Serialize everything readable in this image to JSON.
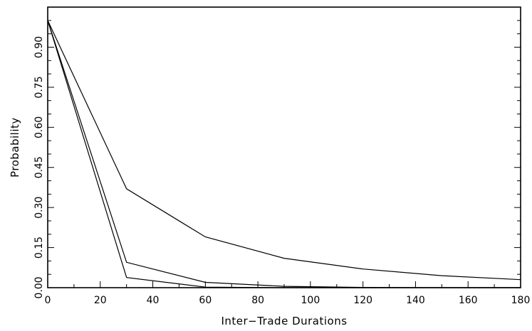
{
  "chart_data": {
    "type": "line",
    "title": "",
    "xlabel": "Inter−Trade Durations",
    "ylabel": "Probability",
    "xlim": [
      0,
      180
    ],
    "ylim": [
      0,
      1.05
    ],
    "x_ticks": [
      0,
      20,
      40,
      60,
      80,
      100,
      120,
      140,
      160,
      180
    ],
    "y_ticks": [
      0.0,
      0.15,
      0.3,
      0.45,
      0.6,
      0.75,
      0.9
    ],
    "y_tick_labels": [
      "0.00",
      "0.15",
      "0.30",
      "0.45",
      "0.60",
      "0.75",
      "0.90"
    ],
    "x_minor_step": 10,
    "y_minor_step": 0.05,
    "grid": false,
    "legend": "none",
    "line_color": "#000000",
    "series": [
      {
        "x": [
          0,
          30,
          60,
          90,
          120,
          150,
          180
        ],
        "values": [
          1.0,
          0.37,
          0.19,
          0.11,
          0.07,
          0.045,
          0.03
        ]
      },
      {
        "x": [
          0,
          30,
          60,
          90,
          120,
          150,
          180
        ],
        "values": [
          1.0,
          0.095,
          0.02,
          0.005,
          0.001,
          0.0,
          0.0
        ]
      },
      {
        "x": [
          0,
          30,
          60,
          90,
          120,
          150,
          180
        ],
        "values": [
          1.0,
          0.038,
          0.002,
          0.0,
          0.0,
          0.0,
          0.0
        ]
      }
    ]
  }
}
